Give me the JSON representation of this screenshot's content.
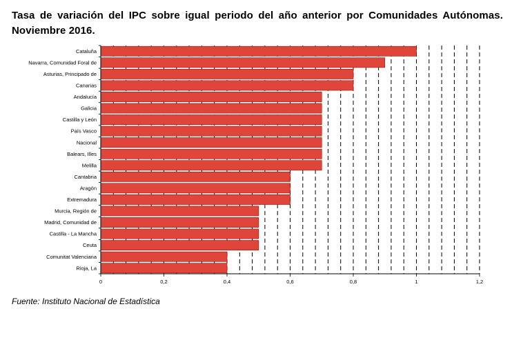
{
  "title": "Tasa de variación del IPC sobre igual periodo del año anterior por Comunidades Autónomas. Noviembre 2016.",
  "source": "Fuente: Instituto Nacional de Estadística",
  "chart_data": {
    "type": "bar",
    "orientation": "horizontal",
    "title": "Tasa de variación del IPC sobre igual periodo del año anterior por Comunidades Autónomas. Noviembre 2016.",
    "xlabel": "",
    "ylabel": "",
    "xlim": [
      0,
      1.2
    ],
    "x_ticks": [
      0,
      0.2,
      0.4,
      0.6,
      0.8,
      1,
      1.2
    ],
    "x_tick_labels": [
      "0",
      "0,2",
      "0,4",
      "0,6",
      "0,8",
      "1",
      "1,2"
    ],
    "grid": "vertical dashed",
    "bar_color": "#e0453a",
    "bar_edge_color": "#8b1a12",
    "categories": [
      "Cataluña",
      "Navarra, Comunidad Foral de",
      "Asturias, Principado de",
      "Canarias",
      "Andalucía",
      "Galicia",
      "Castilla y León",
      "País Vasco",
      "Nacional",
      "Balears, Illes",
      "Melilla",
      "Cantabria",
      "Aragón",
      "Extremadura",
      "Murcia, Región de",
      "Madrid, Comunidad de",
      "Castilla - La Mancha",
      "Ceuta",
      "Comunitat Valenciana",
      "Rioja, La"
    ],
    "values": [
      1.0,
      0.9,
      0.8,
      0.8,
      0.7,
      0.7,
      0.7,
      0.7,
      0.7,
      0.7,
      0.7,
      0.6,
      0.6,
      0.6,
      0.5,
      0.5,
      0.5,
      0.5,
      0.4,
      0.4
    ]
  }
}
